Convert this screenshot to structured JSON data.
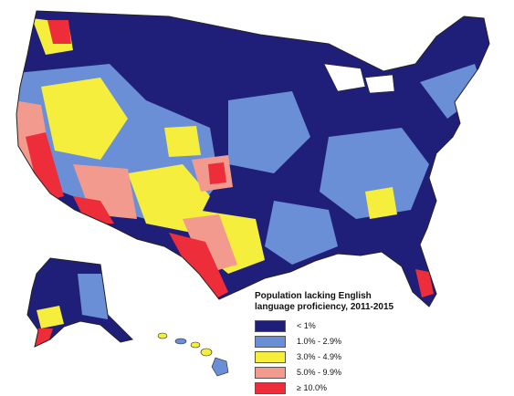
{
  "legend": {
    "title_line1": "Population lacking English",
    "title_line2": "language proficiency, 2011-2015",
    "items": [
      {
        "label": "< 1%",
        "color": "#1f1f7a"
      },
      {
        "label": "1.0% - 2.9%",
        "color": "#6b8fd6"
      },
      {
        "label": "3.0% - 4.9%",
        "color": "#f6ee3c"
      },
      {
        "label": "5.0% - 9.9%",
        "color": "#f29a8e"
      },
      {
        "label": "≥ 10.0%",
        "color": "#ee2d3a"
      }
    ]
  },
  "colors": {
    "background": "#ffffff",
    "county_border": "#888888"
  }
}
